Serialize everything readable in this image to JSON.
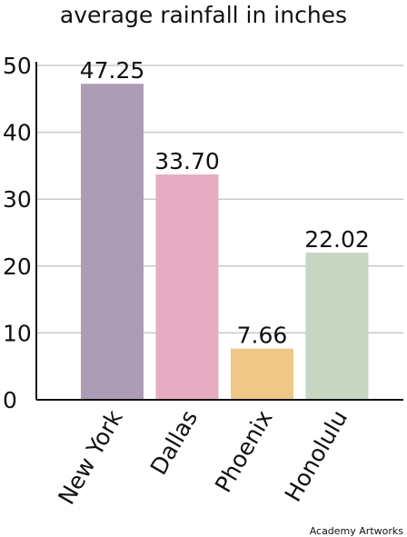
{
  "chart_data": {
    "type": "bar",
    "title": "average rainfall in inches",
    "xlabel": "",
    "ylabel": "",
    "ylim": [
      0,
      50
    ],
    "yticks": [
      0,
      10,
      20,
      30,
      40,
      50
    ],
    "grid": true,
    "categories": [
      "New York",
      "Dallas",
      "Phoenix",
      "Honolulu"
    ],
    "values": [
      47.25,
      33.7,
      7.66,
      22.02
    ],
    "value_labels": [
      "47.25",
      "33.70",
      "7.66",
      "22.02"
    ],
    "colors": [
      "#ad9cb6",
      "#e6adc2",
      "#efc786",
      "#c6d6c3"
    ],
    "gridline_color": "#c8c8c8",
    "axis_color": "#111111"
  },
  "credit": "Academy Artworks"
}
